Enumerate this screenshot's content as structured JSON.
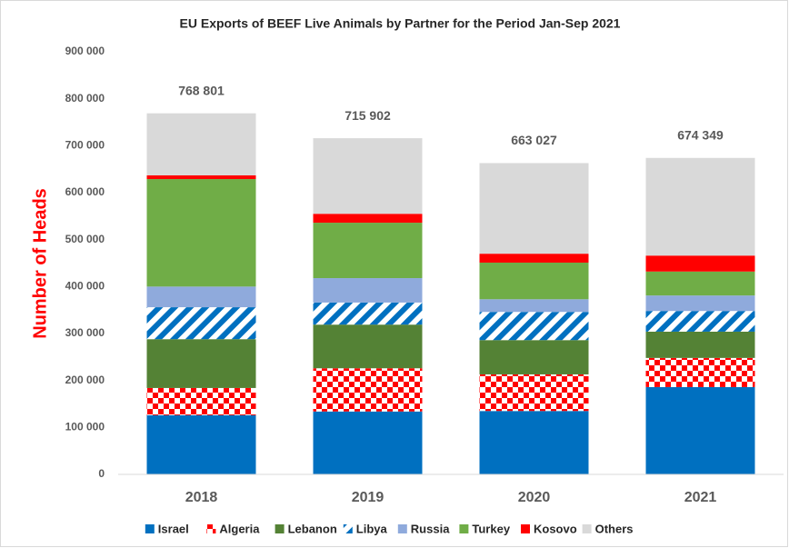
{
  "chart_data": {
    "type": "stacked_bar",
    "title": "EU Exports of BEEF Live Animals by Partner for the Period Jan-Sep 2021",
    "y_label": "Number of Heads",
    "categories": [
      "2018",
      "2019",
      "2020",
      "2021"
    ],
    "series": [
      {
        "name": "Israel",
        "color": "#0070c0",
        "values": [
          126000,
          134000,
          135000,
          186000
        ]
      },
      {
        "name": "Algeria",
        "color": "#ff0000",
        "pattern": "checker",
        "values": [
          58000,
          92000,
          78000,
          62000
        ]
      },
      {
        "name": "Lebanon",
        "color": "#548235",
        "values": [
          104000,
          93000,
          73000,
          56000
        ]
      },
      {
        "name": "Libya",
        "color": "#0070c0",
        "pattern": "stripes",
        "values": [
          68000,
          47000,
          60000,
          44000
        ]
      },
      {
        "name": "Russia",
        "color": "#8faadc",
        "values": [
          44000,
          52000,
          27000,
          33000
        ]
      },
      {
        "name": "Turkey",
        "color": "#70ad47",
        "values": [
          229000,
          118000,
          78000,
          51000
        ]
      },
      {
        "name": "Kosovo",
        "color": "#ff0000",
        "values": [
          8000,
          19000,
          19000,
          34000
        ]
      },
      {
        "name": "Others",
        "color": "#d9d9d9",
        "values": [
          132000,
          161000,
          193000,
          208000
        ]
      }
    ],
    "totals": {
      "values": [
        768801,
        715902,
        663027,
        674349
      ],
      "value_labels": [
        "768 801",
        "715 902",
        "663 027",
        "674 349"
      ]
    },
    "ylim": [
      0,
      900000
    ],
    "yticks": [
      0,
      {
        "value": 100000,
        "label": "100 000"
      },
      {
        "value": 200000,
        "label": "200 000"
      },
      {
        "value": 300000,
        "label": "300 000"
      },
      {
        "value": 400000,
        "label": "400 000"
      },
      {
        "value": 500000,
        "label": "500 000"
      },
      {
        "value": 600000,
        "label": "600 000"
      },
      {
        "value": 700000,
        "label": "700 000"
      },
      {
        "value": 800000,
        "label": "800 000"
      },
      {
        "value": 900000,
        "label": "900 000"
      }
    ],
    "grid": false
  }
}
